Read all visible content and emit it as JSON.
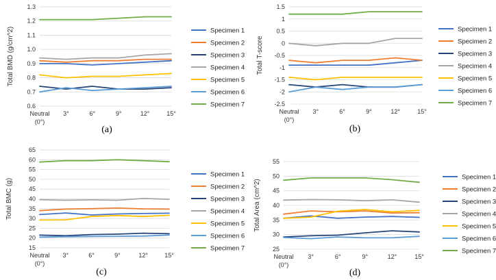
{
  "chart_data": [
    {
      "type": "line",
      "caption": "(a)",
      "ylabel": "Total BMD (g/cm^2)",
      "xlabel": "",
      "categories": [
        "Neutral\n(0°)",
        "3°",
        "6°",
        "9°",
        "12°",
        "15°"
      ],
      "ylim": [
        0.6,
        1.3
      ],
      "ystep": 0.1,
      "ydecimals": 1,
      "grid": true,
      "legend": "right",
      "series": [
        {
          "name": "Specimen 1",
          "color": "#4472c4",
          "values": [
            0.9,
            0.9,
            0.89,
            0.9,
            0.91,
            0.92
          ]
        },
        {
          "name": "Specimen 2",
          "color": "#ed7d31",
          "values": [
            0.92,
            0.91,
            0.92,
            0.92,
            0.93,
            0.93
          ]
        },
        {
          "name": "Specimen 3",
          "color": "#264478",
          "values": [
            0.74,
            0.72,
            0.74,
            0.72,
            0.72,
            0.73
          ]
        },
        {
          "name": "Specimen 4",
          "color": "#a5a5a5",
          "values": [
            0.94,
            0.93,
            0.94,
            0.94,
            0.96,
            0.97
          ]
        },
        {
          "name": "Specimen 5",
          "color": "#ffc000",
          "values": [
            0.82,
            0.8,
            0.81,
            0.81,
            0.82,
            0.83
          ]
        },
        {
          "name": "Specimen 6",
          "color": "#5b9bd5",
          "values": [
            0.7,
            0.73,
            0.71,
            0.72,
            0.73,
            0.74
          ]
        },
        {
          "name": "Specimen 7",
          "color": "#70ad47",
          "values": [
            1.21,
            1.21,
            1.21,
            1.22,
            1.23,
            1.23
          ]
        }
      ]
    },
    {
      "type": "line",
      "caption": "(b)",
      "ylabel": "Total T-score",
      "xlabel": "",
      "categories": [
        "Neutral\n(0°)",
        "3°",
        "6°",
        "9°",
        "12°",
        "15°"
      ],
      "ylim": [
        -2.5,
        1.5
      ],
      "ystep": 0.5,
      "ydecimals": -1,
      "grid": true,
      "legend": "right",
      "series": [
        {
          "name": "Specimen 1",
          "color": "#4472c4",
          "values": [
            -0.9,
            -0.9,
            -0.9,
            -0.9,
            -0.8,
            -0.7
          ]
        },
        {
          "name": "Specimen 2",
          "color": "#ed7d31",
          "values": [
            -0.7,
            -0.8,
            -0.7,
            -0.7,
            -0.6,
            -0.7
          ]
        },
        {
          "name": "Specimen 3",
          "color": "#264478",
          "values": [
            -1.7,
            -1.8,
            -1.7,
            -1.8,
            -1.8,
            -1.7
          ]
        },
        {
          "name": "Specimen 4",
          "color": "#a5a5a5",
          "values": [
            0.0,
            -0.1,
            0.0,
            0.0,
            0.2,
            0.2
          ]
        },
        {
          "name": "Specimen 5",
          "color": "#ffc000",
          "values": [
            -1.4,
            -1.5,
            -1.4,
            -1.4,
            -1.4,
            -1.4
          ]
        },
        {
          "name": "Specimen 6",
          "color": "#5b9bd5",
          "values": [
            -2.0,
            -1.8,
            -1.9,
            -1.8,
            -1.8,
            -1.7
          ]
        },
        {
          "name": "Specimen 7",
          "color": "#70ad47",
          "values": [
            1.2,
            1.2,
            1.2,
            1.3,
            1.3,
            1.3
          ]
        }
      ]
    },
    {
      "type": "line",
      "caption": "(c)",
      "ylabel": "Total BMC (g)",
      "xlabel": "",
      "categories": [
        "Neutral\n(0°)",
        "3°",
        "6°",
        "9°",
        "12°",
        "15°"
      ],
      "ylim": [
        15,
        65
      ],
      "ystep": 5,
      "ydecimals": 0,
      "grid": true,
      "legend": "right",
      "series": [
        {
          "name": "Specimen 1",
          "color": "#4472c4",
          "values": [
            32.0,
            32.8,
            31.8,
            32.3,
            32.5,
            32.7
          ]
        },
        {
          "name": "Specimen 2",
          "color": "#ed7d31",
          "values": [
            34.0,
            34.8,
            35.0,
            35.3,
            34.9,
            34.8
          ]
        },
        {
          "name": "Specimen 3",
          "color": "#264478",
          "values": [
            21.5,
            21.2,
            21.8,
            22.0,
            22.5,
            22.2
          ]
        },
        {
          "name": "Specimen 4",
          "color": "#a5a5a5",
          "values": [
            39.6,
            39.3,
            39.5,
            39.3,
            40.2,
            39.8
          ]
        },
        {
          "name": "Specimen 5",
          "color": "#ffc000",
          "values": [
            29.2,
            29.3,
            31.0,
            31.5,
            31.0,
            31.6
          ]
        },
        {
          "name": "Specimen 6",
          "color": "#5b9bd5",
          "values": [
            20.5,
            20.7,
            20.8,
            20.9,
            21.0,
            21.5
          ]
        },
        {
          "name": "Specimen 7",
          "color": "#70ad47",
          "values": [
            58.8,
            59.5,
            59.5,
            60.0,
            59.5,
            59.0
          ]
        }
      ]
    },
    {
      "type": "line",
      "caption": "(d)",
      "ylabel": "Total Area (cm^2)",
      "xlabel": "",
      "categories": [
        "Neutral\n(0°)",
        "3°",
        "6°",
        "9°",
        "12°",
        "15°"
      ],
      "ylim": [
        25,
        55
      ],
      "ystep": 5,
      "ydecimals": 0,
      "grid": true,
      "legend": "right",
      "series": [
        {
          "name": "Specimen 1",
          "color": "#4472c4",
          "values": [
            35.6,
            36.4,
            35.6,
            36.0,
            36.2,
            35.9
          ]
        },
        {
          "name": "Specimen 2",
          "color": "#ed7d31",
          "values": [
            37.0,
            38.1,
            37.8,
            38.1,
            37.4,
            37.5
          ]
        },
        {
          "name": "Specimen 3",
          "color": "#264478",
          "values": [
            29.2,
            29.6,
            29.8,
            30.6,
            31.3,
            30.9
          ]
        },
        {
          "name": "Specimen 4",
          "color": "#a5a5a5",
          "values": [
            41.8,
            42.0,
            41.9,
            41.6,
            41.9,
            41.1
          ]
        },
        {
          "name": "Specimen 5",
          "color": "#ffc000",
          "values": [
            35.6,
            36.0,
            38.0,
            38.6,
            37.8,
            38.3
          ]
        },
        {
          "name": "Specimen 6",
          "color": "#5b9bd5",
          "values": [
            29.0,
            28.6,
            29.2,
            28.9,
            28.9,
            29.4
          ]
        },
        {
          "name": "Specimen 7",
          "color": "#70ad47",
          "values": [
            48.6,
            49.4,
            49.4,
            49.4,
            48.8,
            47.9
          ]
        }
      ]
    }
  ]
}
